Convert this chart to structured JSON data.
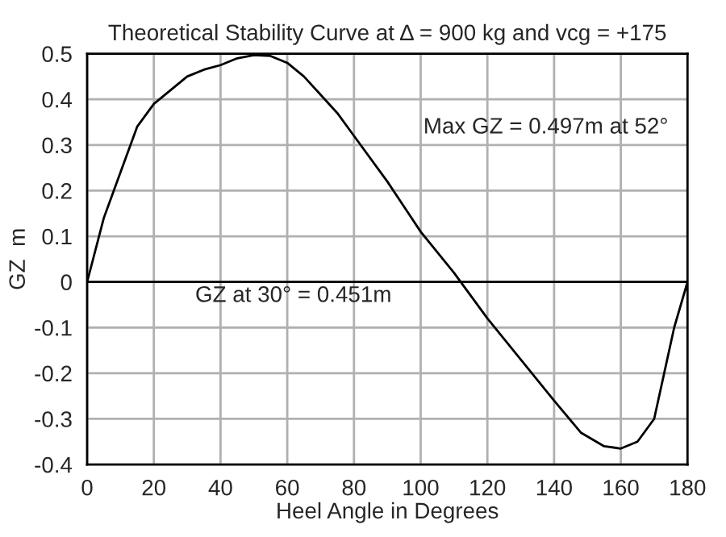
{
  "chart_data": {
    "type": "line",
    "title": "Theoretical Stability Curve at Δ = 900 kg and vcg = +175",
    "xlabel": "Heel Angle in Degrees",
    "ylabel": "GZ  m",
    "x": [
      0,
      5,
      10,
      15,
      20,
      25,
      30,
      35,
      40,
      45,
      50,
      55,
      60,
      65,
      70,
      75,
      80,
      90,
      100,
      110,
      120,
      130,
      140,
      148,
      155,
      160,
      165,
      170,
      173,
      176,
      180
    ],
    "series": [
      {
        "color": "#000000",
        "values": [
          0,
          0.14,
          0.24,
          0.34,
          0.39,
          0.42,
          0.45,
          0.465,
          0.475,
          0.49,
          0.497,
          0.495,
          0.48,
          0.45,
          0.41,
          0.37,
          0.32,
          0.22,
          0.11,
          0.02,
          -0.08,
          -0.17,
          -0.26,
          -0.33,
          -0.36,
          -0.365,
          -0.35,
          -0.3,
          -0.2,
          -0.1,
          0
        ]
      }
    ],
    "xlim": [
      0,
      180
    ],
    "xticks": [
      0,
      20,
      40,
      60,
      80,
      100,
      120,
      140,
      160,
      180
    ],
    "ylim": [
      -0.4,
      0.5
    ],
    "yticks": [
      -0.4,
      -0.3,
      -0.2,
      -0.1,
      0,
      0.1,
      0.2,
      0.3,
      0.4,
      0.5
    ],
    "ref_lines": [
      {
        "axis": "y",
        "value": 0,
        "color": "#000000"
      }
    ],
    "annotations": [
      "Max GZ = 0.497m at 52°",
      "GZ at 30° = 0.451m"
    ],
    "grid": true,
    "legend": false,
    "marker": "none",
    "line_style": "solid"
  }
}
